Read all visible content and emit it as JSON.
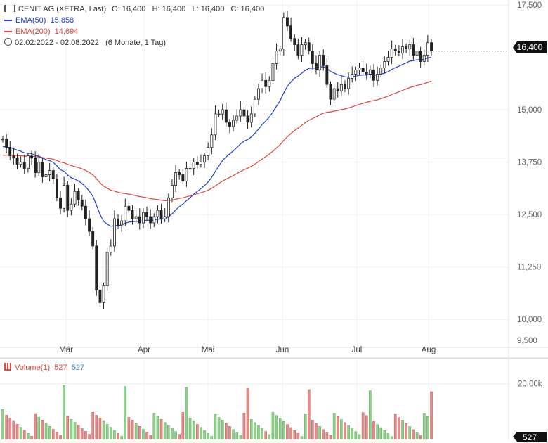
{
  "header": {
    "title": "CENIT AG (XETRA, Last)",
    "ohlc": "O: 16,400   H: 16,400   L: 16,400   C: 16,400",
    "ema50_label": "EMA(50)",
    "ema50_value": "15,858",
    "ema200_label": "EMA(200)",
    "ema200_value": "14,694",
    "range": "02.02.2022 - 02.08.2022",
    "range_detail": "(6 Monate, 1 Tag)"
  },
  "volume_panel": {
    "label": "Volume(1)",
    "value_red": "527",
    "value_blue": "527",
    "last_badge": "527"
  },
  "price_badge": "16,400",
  "colors": {
    "up": "#ffffff",
    "down": "#222222",
    "ema50": "#1f3fcf",
    "ema200": "#e0443a",
    "vol_up": "#8fd08a",
    "vol_down": "#e98a88",
    "badge_bg": "#111111"
  },
  "chart_data": {
    "type": "candlestick",
    "x_ticks": [
      "Mär",
      "Apr",
      "Mai",
      "Jun",
      "Jul",
      "Aug"
    ],
    "y_ticks": [
      "17,500",
      "15,000",
      "13,750",
      "12,500",
      "11,250",
      "10,000",
      "9,500"
    ],
    "y_tick_values": [
      17.5,
      15.0,
      13.75,
      12.5,
      11.25,
      10.0,
      9.5
    ],
    "ylim": [
      9.4,
      17.55
    ],
    "volume_ticks": [
      "20,00k"
    ],
    "volume_tick_values": [
      20000
    ],
    "volume_max": 27000,
    "close": [
      14.3,
      14.1,
      13.9,
      13.85,
      13.7,
      13.75,
      13.6,
      13.9,
      13.85,
      13.5,
      13.75,
      13.4,
      13.45,
      13.55,
      13.35,
      12.9,
      12.65,
      13.2,
      12.6,
      12.75,
      13.05,
      12.85,
      12.7,
      12.4,
      12.1,
      11.75,
      10.7,
      10.4,
      10.8,
      11.6,
      11.75,
      12.4,
      12.25,
      12.35,
      12.7,
      12.6,
      12.4,
      12.45,
      12.3,
      12.55,
      12.45,
      12.3,
      12.45,
      12.6,
      12.4,
      12.45,
      12.9,
      13.2,
      13.5,
      13.45,
      13.3,
      13.6,
      13.6,
      13.75,
      13.7,
      13.75,
      13.9,
      14.1,
      14.4,
      14.9,
      14.9,
      15.0,
      14.7,
      14.6,
      14.75,
      14.85,
      15.0,
      14.85,
      14.7,
      14.9,
      15.25,
      15.5,
      15.7,
      15.55,
      15.7,
      16.1,
      16.4,
      16.45,
      17.2,
      17.0,
      16.7,
      16.55,
      16.3,
      16.55,
      16.6,
      16.4,
      16.1,
      15.95,
      16.3,
      16.05,
      15.6,
      15.25,
      15.5,
      15.45,
      15.6,
      15.5,
      15.75,
      15.85,
      15.95,
      16.0,
      15.9,
      15.85,
      15.95,
      15.7,
      15.85,
      16.0,
      16.15,
      16.25,
      16.45,
      16.4,
      16.35,
      16.5,
      16.45,
      16.55,
      16.3,
      16.4,
      16.15,
      16.3,
      16.6,
      16.4
    ]
  }
}
